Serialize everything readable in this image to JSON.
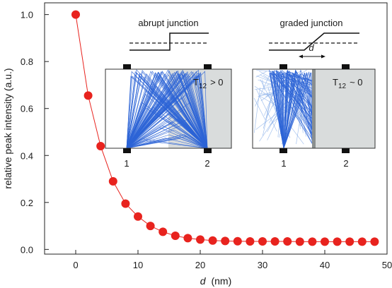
{
  "chart_data": {
    "type": "scatter",
    "xlabel_symbol": "d",
    "xlabel_unit": "(nm)",
    "ylabel": "relative peak intensity (a.u.)",
    "xlim": [
      -5,
      50
    ],
    "ylim": [
      -0.02,
      1.05
    ],
    "xticks": [
      0,
      10,
      20,
      30,
      40,
      50
    ],
    "yticks": [
      0.0,
      0.2,
      0.4,
      0.6,
      0.8,
      1.0
    ],
    "ytick_labels": [
      "0.0",
      "0.2",
      "0.4",
      "0.6",
      "0.8",
      "1.0"
    ],
    "marker_color": "#e8231e",
    "line_color": "#e8231e",
    "series": [
      {
        "x": [
          0,
          2,
          4,
          6,
          8,
          10,
          12,
          14,
          16,
          18,
          20,
          22,
          24,
          26,
          28,
          30,
          32,
          34,
          36,
          38,
          40,
          42,
          44,
          46,
          48
        ],
        "y": [
          1.0,
          0.655,
          0.44,
          0.29,
          0.195,
          0.14,
          0.1,
          0.075,
          0.058,
          0.048,
          0.042,
          0.038,
          0.036,
          0.035,
          0.034,
          0.034,
          0.034,
          0.034,
          0.033,
          0.033,
          0.033,
          0.033,
          0.033,
          0.033,
          0.033
        ]
      }
    ],
    "insets": [
      {
        "title": "abrupt junction",
        "label": "T₁₂ > 0",
        "label_main": "T",
        "label_sub": "12",
        "label_rel": "> 0",
        "contact_left": "1",
        "contact_right": "2",
        "ray_color": "#2d64d6"
      },
      {
        "title": "graded junction",
        "label": "T₁₂ ~ 0",
        "label_main": "T",
        "label_sub": "12",
        "label_rel": "~ 0",
        "width_symbol": "d",
        "contact_left": "1",
        "contact_right": "2",
        "ray_color": "#2d64d6",
        "ray_color_light": "#8fb3ea"
      }
    ]
  }
}
